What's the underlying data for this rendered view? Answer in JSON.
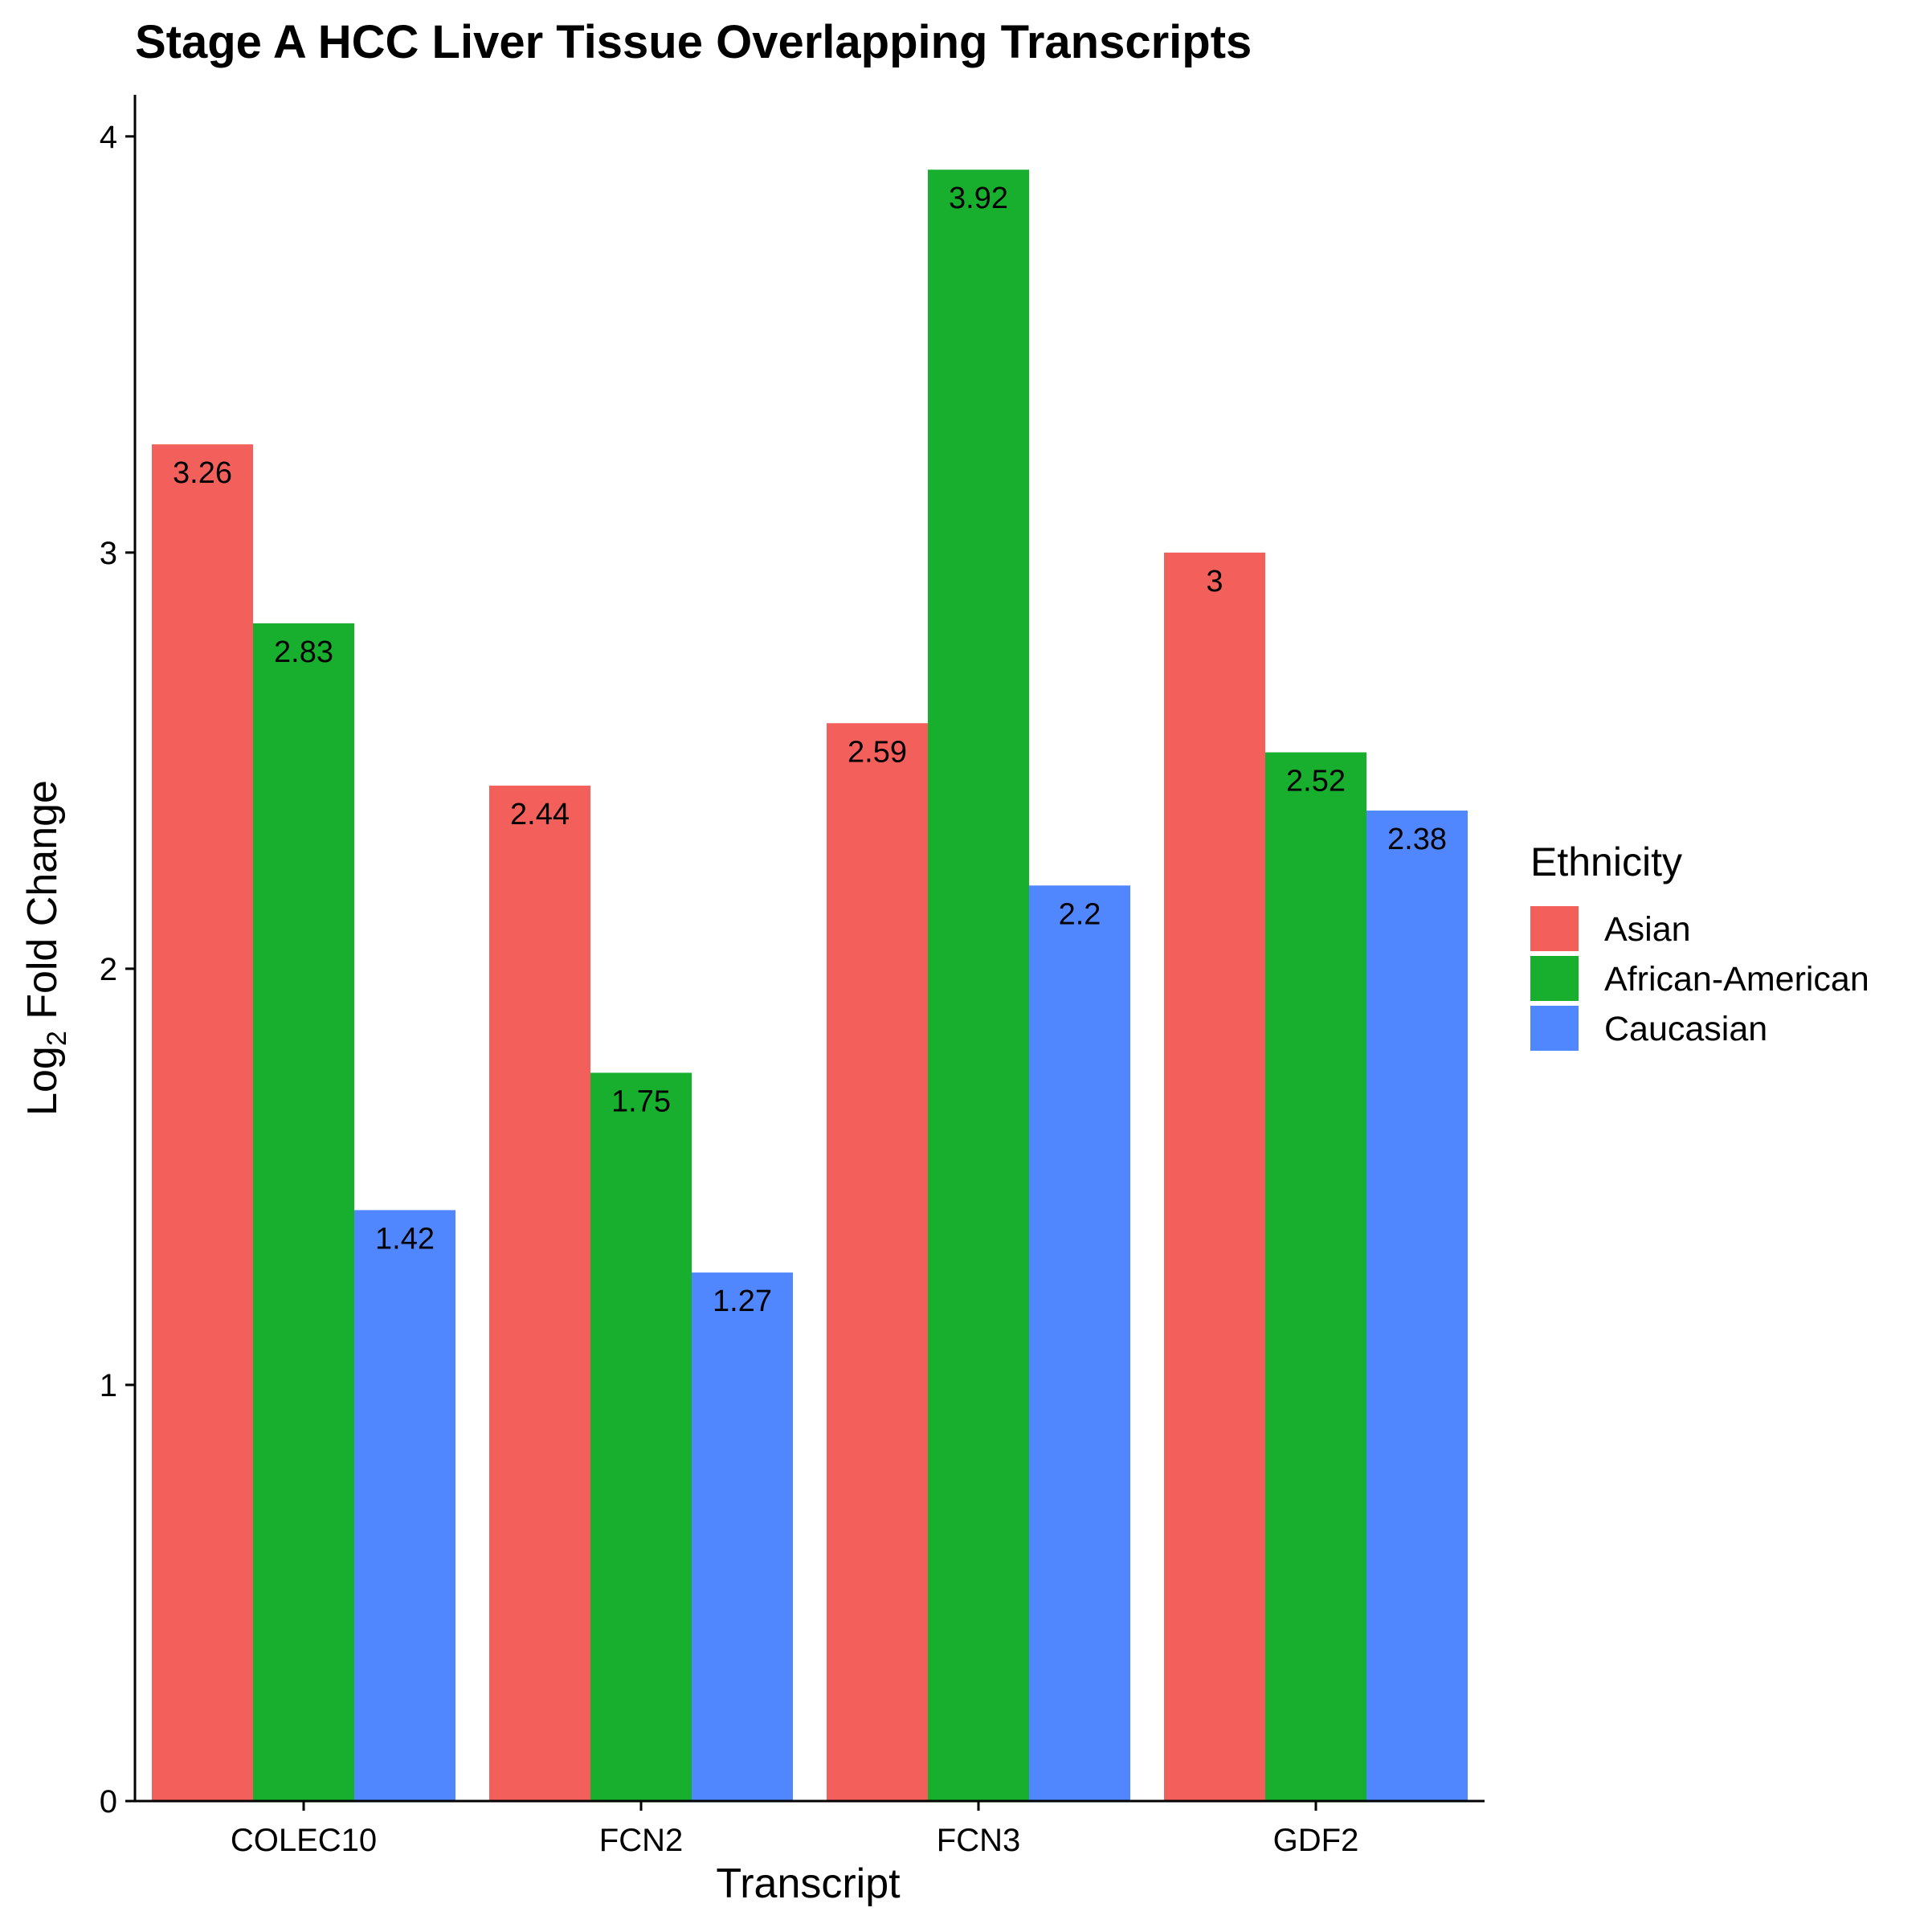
{
  "chart_data": {
    "type": "bar",
    "title": "Stage A HCC Liver Tissue Overlapping Transcripts",
    "xlabel": "Transcript",
    "ylabel_main": "Log",
    "ylabel_sub": "2",
    "ylabel_rest": " Fold Change",
    "categories": [
      "COLEC10",
      "FCN2",
      "FCN3",
      "GDF2"
    ],
    "series": [
      {
        "name": "Asian",
        "color": "#F35F5B",
        "values": [
          3.26,
          2.44,
          2.59,
          3
        ]
      },
      {
        "name": "African-American",
        "color": "#18AE2E",
        "values": [
          2.83,
          1.75,
          3.92,
          2.52
        ]
      },
      {
        "name": "Caucasian",
        "color": "#5087FF",
        "values": [
          1.42,
          1.27,
          2.2,
          2.38
        ]
      }
    ],
    "ylim": [
      0,
      4.1
    ],
    "yticks": [
      0,
      1,
      2,
      3,
      4
    ],
    "grid": false,
    "legend": {
      "title": "Ethnicity",
      "placement": "right"
    }
  }
}
